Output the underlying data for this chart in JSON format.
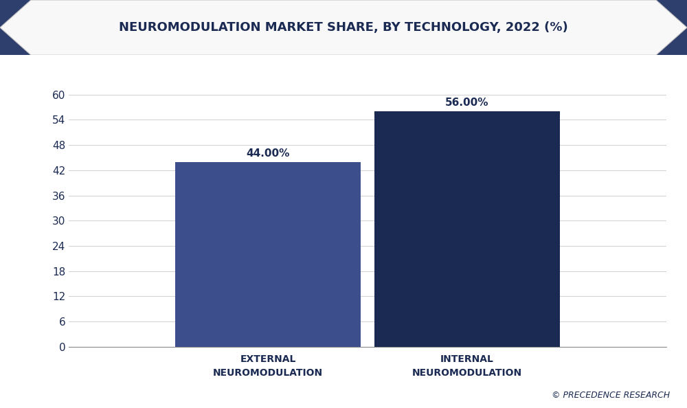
{
  "title": "NEUROMODULATION MARKET SHARE, BY TECHNOLOGY, 2022 (%)",
  "categories": [
    "EXTERNAL\nNEUROMODULATION",
    "INTERNAL\nNEUROMODULATION"
  ],
  "values": [
    44.0,
    56.0
  ],
  "bar_colors": [
    "#3d4e8c",
    "#1b2a52"
  ],
  "bar_labels": [
    "44.00%",
    "56.00%"
  ],
  "ylim": [
    0,
    66
  ],
  "yticks": [
    0,
    6,
    12,
    18,
    24,
    30,
    36,
    42,
    48,
    54,
    60
  ],
  "background_color": "#ffffff",
  "plot_bg_color": "#ffffff",
  "title_color": "#1b2a52",
  "tick_color": "#1b2a52",
  "label_color": "#1b2a52",
  "grid_color": "#d0d0d0",
  "banner_color": "#f8f8f8",
  "banner_border_color": "#c0c0c0",
  "chevron_color": "#2e3f6e",
  "watermark": "© PRECEDENCE RESEARCH",
  "title_fontsize": 13,
  "label_fontsize": 10,
  "bar_label_fontsize": 11,
  "watermark_fontsize": 9,
  "tick_fontsize": 11,
  "bar_width": 0.28,
  "x_positions": [
    0.35,
    0.65
  ]
}
